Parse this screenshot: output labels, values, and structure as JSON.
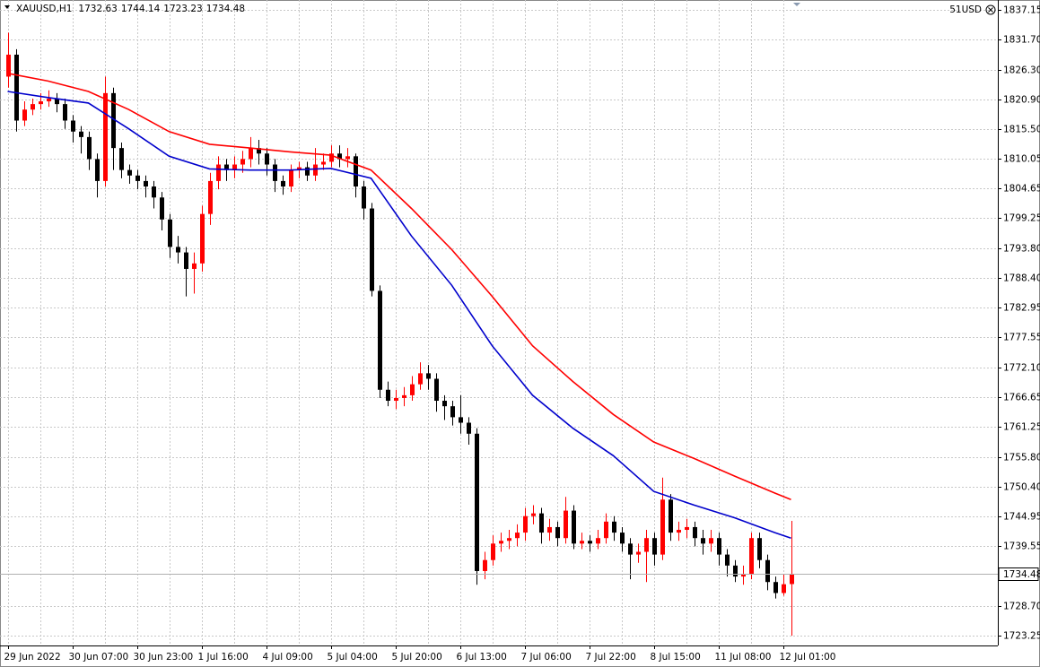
{
  "chart_data": {
    "type": "candlestick",
    "symbol": "XAUUSD,H1",
    "account": "51USD",
    "up_color": "#ff0000",
    "down_color": "#000000",
    "grid": true,
    "ylim": [
      1721.45,
      1838.95
    ],
    "yticks": [
      1837.15,
      {
        "value": 1831.7,
        "label": "1831.70"
      },
      {
        "value": 1826.3,
        "label": "1826.30"
      },
      {
        "value": 1820.9,
        "label": "1820.90"
      },
      {
        "value": 1815.5,
        "label": "1815.50"
      },
      1810.05,
      1804.65,
      1799.25,
      {
        "value": 1793.8,
        "label": "1793.80"
      },
      {
        "value": 1788.4,
        "label": "1788.40"
      },
      1782.95,
      1777.55,
      {
        "value": 1772.1,
        "label": "1772.10"
      },
      1766.65,
      1761.25,
      {
        "value": 1755.8,
        "label": "1755.80"
      },
      {
        "value": 1750.4,
        "label": "1750.40"
      },
      1744.95,
      1739.55,
      {
        "value": 1728.7,
        "label": "1728.70"
      },
      1723.25
    ],
    "categories": [
      "29 Jun 2022",
      null,
      null,
      null,
      null,
      null,
      null,
      null,
      "30 Jun 07:00",
      null,
      null,
      null,
      null,
      null,
      null,
      null,
      "30 Jun 23:00",
      null,
      null,
      null,
      null,
      null,
      null,
      null,
      "1 Jul 16:00",
      null,
      null,
      null,
      null,
      null,
      null,
      null,
      "4 Jul 09:00",
      null,
      null,
      null,
      null,
      null,
      null,
      null,
      "5 Jul 04:00",
      null,
      null,
      null,
      null,
      null,
      null,
      null,
      "5 Jul 20:00",
      null,
      null,
      null,
      null,
      null,
      null,
      null,
      "6 Jul 13:00",
      null,
      null,
      null,
      null,
      null,
      null,
      null,
      "7 Jul 06:00",
      null,
      null,
      null,
      null,
      null,
      null,
      null,
      "7 Jul 22:00",
      null,
      null,
      null,
      null,
      null,
      null,
      null,
      "8 Jul 15:00",
      null,
      null,
      null,
      null,
      null,
      null,
      null,
      "11 Jul 08:00",
      null,
      null,
      null,
      null,
      null,
      null,
      null,
      "12 Jul 01:00",
      null
    ],
    "open": [
      1825,
      1829,
      1817,
      1819,
      1820,
      1820.5,
      1821,
      1820,
      1817,
      1815,
      1814,
      1810,
      1806,
      1822,
      1812,
      1808,
      1807,
      1806,
      1805,
      1803,
      1799,
      1794,
      1793,
      1790,
      1791,
      1800,
      1806,
      1809,
      1808,
      1809,
      1810,
      1812,
      1811,
      1809,
      1806,
      1805,
      1808,
      1808.5,
      1807,
      1809,
      1809.5,
      1811,
      1810,
      1810.5,
      1805,
      1801,
      1786,
      1768,
      1766,
      1766.5,
      1767,
      1769,
      1771,
      1770,
      1766,
      1765,
      1763,
      1762,
      1760,
      1735,
      1737,
      1740,
      1740.5,
      1741,
      1742,
      1745,
      1745.5,
      1742,
      1743,
      1741,
      1746,
      1740,
      1740.5,
      1740,
      1741,
      1744,
      1742,
      1740,
      1738,
      1738.5,
      1741,
      1738,
      1748,
      1742,
      1742.5,
      1743,
      1741,
      1740,
      1741,
      1738,
      1736,
      1734,
      1734.5,
      1741,
      1737,
      1733,
      1731,
      1732.63
    ],
    "high": [
      1833,
      1830,
      1820.5,
      1821,
      1822,
      1822.5,
      1822,
      1821,
      1818,
      1816,
      1815,
      1811,
      1825,
      1823,
      1813,
      1809,
      1808,
      1807,
      1806,
      1804,
      1800,
      1796,
      1794,
      1793,
      1801.5,
      1807.5,
      1810.5,
      1810,
      1810.5,
      1811.5,
      1814,
      1813.5,
      1812,
      1810,
      1807,
      1809,
      1809.5,
      1809.5,
      1812,
      1811,
      1812.5,
      1812.5,
      1812,
      1811,
      1806,
      1802,
      1787,
      1769.5,
      1768,
      1768.5,
      1770.5,
      1773,
      1772.5,
      1771,
      1767,
      1766,
      1767,
      1763,
      1761,
      1738.5,
      1741.5,
      1742,
      1742.5,
      1743.5,
      1746.5,
      1747,
      1746.5,
      1744.5,
      1744,
      1748.5,
      1747,
      1742,
      1741.5,
      1742.5,
      1745.5,
      1745,
      1743,
      1741,
      1740,
      1742.5,
      1742,
      1752,
      1749,
      1744,
      1744.5,
      1744,
      1742.5,
      1742.5,
      1742,
      1739,
      1737,
      1736,
      1742,
      1742,
      1738,
      1734,
      1734.5,
      1744.14
    ],
    "low": [
      1823,
      1815,
      1816,
      1818,
      1819,
      1819.5,
      1818.5,
      1815.5,
      1813,
      1811,
      1808,
      1803,
      1805,
      1808,
      1806.5,
      1805.5,
      1804.5,
      1803,
      1801,
      1797,
      1792,
      1791,
      1785,
      1785.5,
      1789.5,
      1798,
      1804.5,
      1806,
      1806.5,
      1807.5,
      1808.5,
      1809,
      1807,
      1804,
      1803.5,
      1804,
      1806.5,
      1806,
      1806,
      1808,
      1808.5,
      1808.5,
      1808.5,
      1803,
      1799,
      1785,
      1766.5,
      1765,
      1764.5,
      1765,
      1766,
      1768,
      1768,
      1764,
      1762.5,
      1761.5,
      1760,
      1758,
      1732.5,
      1733.5,
      1736,
      1738.5,
      1739,
      1739.5,
      1740.5,
      1743.5,
      1740,
      1740.5,
      1739.5,
      1740,
      1739,
      1739,
      1738.5,
      1739,
      1740,
      1740.5,
      1738.5,
      1733.5,
      1736.5,
      1733,
      1736,
      1737,
      1740.5,
      1740.5,
      1741,
      1739.5,
      1738,
      1738.5,
      1736,
      1734,
      1733,
      1732.5,
      1733.5,
      1735.5,
      1731.5,
      1730,
      1730.5,
      1723.23
    ],
    "close": [
      1829,
      1817,
      1819,
      1820,
      1820.5,
      1821,
      1820,
      1817,
      1815,
      1814,
      1810,
      1806,
      1822,
      1812,
      1808,
      1807,
      1806,
      1805,
      1803,
      1799,
      1794,
      1793,
      1790,
      1791,
      1800,
      1806,
      1809,
      1808,
      1809,
      1810,
      1812,
      1811,
      1809,
      1806,
      1805,
      1808,
      1808.5,
      1807,
      1809,
      1809.5,
      1811,
      1810,
      1810.5,
      1805,
      1801,
      1786,
      1768,
      1766,
      1766.5,
      1767,
      1769,
      1771,
      1770,
      1766,
      1765,
      1763,
      1762,
      1760,
      1735,
      1737,
      1740,
      1740.5,
      1741,
      1742,
      1745,
      1745.5,
      1742,
      1743,
      1741,
      1746,
      1740,
      1740.5,
      1740,
      1741,
      1744,
      1742,
      1740,
      1738,
      1738.5,
      1741,
      1738,
      1748,
      1742,
      1742.5,
      1743,
      1741,
      1740,
      1741,
      1738,
      1736,
      1734,
      1734.5,
      1741,
      1737,
      1733,
      1731,
      1732.6,
      1734.48
    ],
    "lines": [
      {
        "color": "#ff0000",
        "x": [
          0,
          5,
          10,
          15,
          20,
          25,
          30,
          35,
          40,
          45,
          50,
          55,
          60,
          65,
          70,
          75,
          80,
          85,
          90,
          95,
          97
        ],
        "values": [
          1825.6,
          1824.2,
          1822.3,
          1819,
          1815,
          1812.7,
          1812,
          1811.3,
          1810.7,
          1808,
          1801,
          1793.5,
          1785,
          1776,
          1769.5,
          1763.5,
          1758.5,
          1755.5,
          1752.3,
          1749.2,
          1748
        ]
      },
      {
        "color": "#0000cc",
        "x": [
          0,
          5,
          10,
          15,
          20,
          25,
          30,
          35,
          40,
          45,
          50,
          55,
          60,
          65,
          70,
          75,
          80,
          85,
          90,
          95,
          97
        ],
        "values": [
          1822.3,
          1821.2,
          1820.2,
          1815.5,
          1810.5,
          1808.2,
          1808,
          1808,
          1808.3,
          1806.5,
          1796,
          1787,
          1776,
          1767,
          1761,
          1756,
          1749.5,
          1747,
          1744.7,
          1742,
          1741
        ]
      }
    ]
  }
}
